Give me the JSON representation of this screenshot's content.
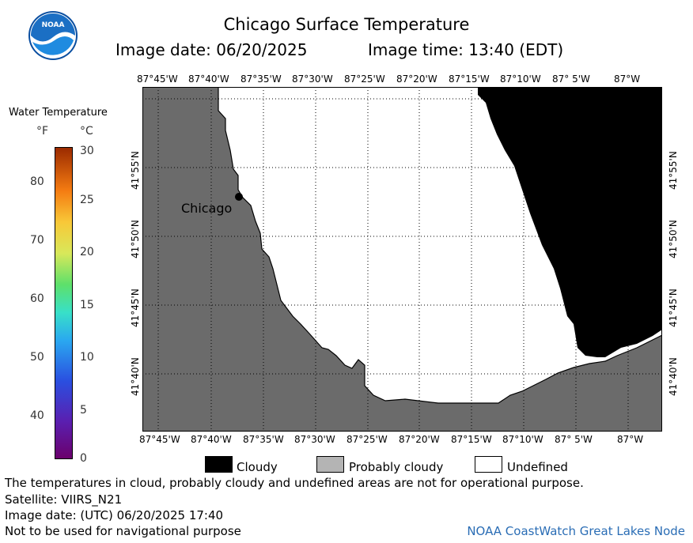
{
  "header": {
    "title": "Chicago Surface Temperature",
    "image_date": "Image date: 06/20/2025",
    "image_time": "Image time: 13:40 (EDT)"
  },
  "logo": {
    "text": "NOAA"
  },
  "colorbar": {
    "title": "Water Temperature",
    "unit_f": "°F",
    "unit_c": "°C",
    "f_ticks": [
      "80",
      "70",
      "60",
      "50",
      "40"
    ],
    "c_ticks": [
      "30",
      "25",
      "20",
      "15",
      "10",
      "5",
      "0"
    ]
  },
  "map": {
    "lon_labels": [
      "87°45'W",
      "87°40'W",
      "87°35'W",
      "87°30'W",
      "87°25'W",
      "87°20'W",
      "87°15'W",
      "87°10'W",
      "87° 5'W",
      "87°W"
    ],
    "lat_labels": [
      "41°55'N",
      "41°50'N",
      "41°45'N",
      "41°40'N"
    ],
    "city_label": "Chicago",
    "colors": {
      "land": "#6b6b6b",
      "cloudy": "#000000",
      "undefined": "#ffffff",
      "grid": "#000000"
    }
  },
  "legend": {
    "cloudy": "Cloudy",
    "probably_cloudy": "Probably cloudy",
    "undefined": "Undefined"
  },
  "footer": {
    "disclaimer": "The temperatures in cloud, probably cloudy and undefined areas are not for operational purpose.",
    "satellite": "Satellite: VIIRS_N21",
    "utc_date": "Image date: (UTC) 06/20/2025  17:40",
    "nav_warning": "Not to be used for navigational purpose",
    "credit": "NOAA CoastWatch Great Lakes Node"
  }
}
